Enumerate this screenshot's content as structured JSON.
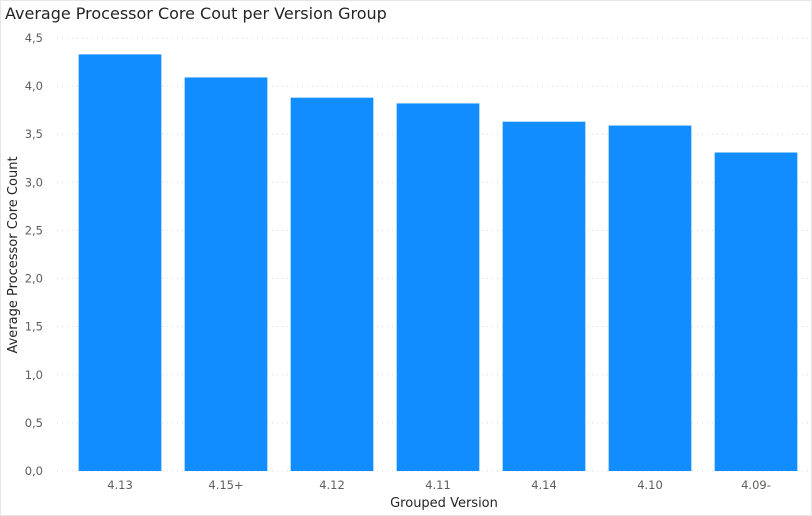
{
  "chart_data": {
    "type": "bar",
    "title": "Average Processor Core Cout per Version Group",
    "xlabel": "Grouped Version",
    "ylabel": "Average Processor Core Count",
    "categories": [
      "4.13",
      "4.15+",
      "4.12",
      "4.11",
      "4.14",
      "4.10",
      "4.09-"
    ],
    "series": [
      {
        "values": [
          4.33,
          4.09,
          3.88,
          3.82,
          3.63,
          3.59,
          3.31
        ]
      }
    ],
    "ylim": [
      0,
      4.5
    ],
    "yticks": [
      "0,0",
      "0,5",
      "1,0",
      "1,5",
      "2,0",
      "2,5",
      "3,0",
      "3,5",
      "4,0",
      "4,5"
    ],
    "grid": true,
    "bar_color": "#118DFF"
  }
}
